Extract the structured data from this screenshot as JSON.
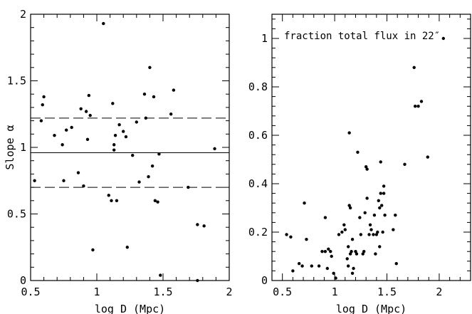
{
  "chart_data": [
    {
      "type": "scatter",
      "title": "",
      "xlabel": "log D (Mpc)",
      "ylabel": "Slope α",
      "xlim": [
        0.5,
        2.0
      ],
      "ylim": [
        0,
        2.0
      ],
      "x_ticks": [
        "0.5",
        "1",
        "1.5",
        "2"
      ],
      "y_ticks": [
        "0",
        "0.5",
        "1",
        "1.5",
        "2"
      ],
      "reference_lines": [
        {
          "y": 0.96,
          "style": "solid"
        },
        {
          "y": 1.22,
          "style": "dashed"
        },
        {
          "y": 0.7,
          "style": "dashed"
        }
      ],
      "points": [
        [
          0.53,
          0.75
        ],
        [
          0.58,
          1.2
        ],
        [
          0.59,
          1.32
        ],
        [
          0.6,
          1.38
        ],
        [
          0.68,
          1.09
        ],
        [
          0.74,
          1.02
        ],
        [
          0.75,
          0.75
        ],
        [
          0.77,
          1.13
        ],
        [
          0.81,
          1.15
        ],
        [
          0.86,
          0.81
        ],
        [
          0.88,
          1.29
        ],
        [
          0.9,
          0.71
        ],
        [
          0.92,
          1.27
        ],
        [
          0.93,
          1.06
        ],
        [
          0.94,
          1.39
        ],
        [
          0.95,
          1.24
        ],
        [
          0.97,
          0.23
        ],
        [
          1.05,
          1.93
        ],
        [
          1.09,
          0.64
        ],
        [
          1.11,
          0.6
        ],
        [
          1.12,
          1.33
        ],
        [
          1.13,
          0.98
        ],
        [
          1.13,
          1.02
        ],
        [
          1.14,
          1.09
        ],
        [
          1.15,
          0.6
        ],
        [
          1.17,
          1.17
        ],
        [
          1.2,
          1.12
        ],
        [
          1.22,
          1.08
        ],
        [
          1.23,
          0.25
        ],
        [
          1.27,
          0.94
        ],
        [
          1.3,
          1.19
        ],
        [
          1.32,
          0.74
        ],
        [
          1.36,
          1.4
        ],
        [
          1.37,
          1.22
        ],
        [
          1.39,
          0.78
        ],
        [
          1.4,
          1.6
        ],
        [
          1.42,
          0.86
        ],
        [
          1.43,
          1.38
        ],
        [
          1.44,
          0.6
        ],
        [
          1.46,
          0.59
        ],
        [
          1.47,
          0.95
        ],
        [
          1.48,
          0.04
        ],
        [
          1.56,
          1.25
        ],
        [
          1.58,
          1.43
        ],
        [
          1.69,
          0.7
        ],
        [
          1.76,
          0.42
        ],
        [
          1.76,
          0.0
        ],
        [
          1.81,
          0.41
        ],
        [
          1.89,
          0.99
        ]
      ]
    },
    {
      "type": "scatter",
      "title": "",
      "xlabel": "log D (Mpc)",
      "ylabel": "",
      "xlim": [
        0.4,
        2.3
      ],
      "ylim": [
        0,
        1.1
      ],
      "x_ticks": [
        "0.5",
        "1",
        "1.5",
        "2"
      ],
      "y_ticks": [
        "0",
        "0.2",
        "0.4",
        "0.6",
        "0.8",
        "1"
      ],
      "annotation": "fraction total flux in 22″",
      "points": [
        [
          0.54,
          0.19
        ],
        [
          0.58,
          0.18
        ],
        [
          0.6,
          0.04
        ],
        [
          0.66,
          0.07
        ],
        [
          0.69,
          0.06
        ],
        [
          0.71,
          0.32
        ],
        [
          0.73,
          0.17
        ],
        [
          0.78,
          0.06
        ],
        [
          0.85,
          0.06
        ],
        [
          0.88,
          0.12
        ],
        [
          0.91,
          0.12
        ],
        [
          0.91,
          0.26
        ],
        [
          0.93,
          0.05
        ],
        [
          0.94,
          0.13
        ],
        [
          0.96,
          0.12
        ],
        [
          0.97,
          0.1
        ],
        [
          0.99,
          0.03
        ],
        [
          1.01,
          0.01
        ],
        [
          1.04,
          0.19
        ],
        [
          1.07,
          0.2
        ],
        [
          1.09,
          0.23
        ],
        [
          1.1,
          0.21
        ],
        [
          1.12,
          0.09
        ],
        [
          1.13,
          0.06
        ],
        [
          1.13,
          0.14
        ],
        [
          1.14,
          0.31
        ],
        [
          1.14,
          0.61
        ],
        [
          1.15,
          0.3
        ],
        [
          1.15,
          0.11
        ],
        [
          1.16,
          0.12
        ],
        [
          1.17,
          0.03
        ],
        [
          1.17,
          0.17
        ],
        [
          1.18,
          0.05
        ],
        [
          1.2,
          0.12
        ],
        [
          1.21,
          0.11
        ],
        [
          1.22,
          0.53
        ],
        [
          1.24,
          0.26
        ],
        [
          1.25,
          0.19
        ],
        [
          1.27,
          0.11
        ],
        [
          1.28,
          0.12
        ],
        [
          1.29,
          0.28
        ],
        [
          1.3,
          0.47
        ],
        [
          1.31,
          0.46
        ],
        [
          1.31,
          0.34
        ],
        [
          1.33,
          0.19
        ],
        [
          1.34,
          0.23
        ],
        [
          1.35,
          0.21
        ],
        [
          1.37,
          0.19
        ],
        [
          1.38,
          0.27
        ],
        [
          1.39,
          0.11
        ],
        [
          1.4,
          0.19
        ],
        [
          1.41,
          0.2
        ],
        [
          1.42,
          0.33
        ],
        [
          1.43,
          0.3
        ],
        [
          1.43,
          0.14
        ],
        [
          1.44,
          0.36
        ],
        [
          1.44,
          0.49
        ],
        [
          1.45,
          0.31
        ],
        [
          1.46,
          0.2
        ],
        [
          1.47,
          0.36
        ],
        [
          1.47,
          0.39
        ],
        [
          1.48,
          0.27
        ],
        [
          1.56,
          0.21
        ],
        [
          1.58,
          0.27
        ],
        [
          1.59,
          0.07
        ],
        [
          1.67,
          0.48
        ],
        [
          1.76,
          0.88
        ],
        [
          1.77,
          0.72
        ],
        [
          1.8,
          0.72
        ],
        [
          1.83,
          0.74
        ],
        [
          1.89,
          0.51
        ],
        [
          2.04,
          1.0
        ]
      ]
    }
  ]
}
